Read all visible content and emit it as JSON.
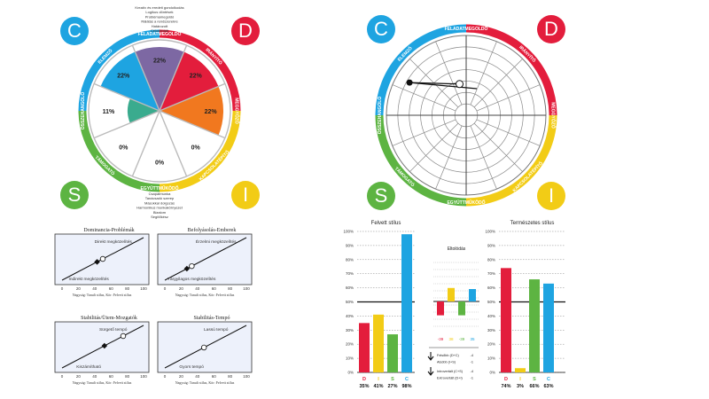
{
  "colors": {
    "D": "#e31d3c",
    "I": "#f2cc16",
    "S": "#5db442",
    "C": "#1ea4e1",
    "purple": "#7d68a3",
    "orange": "#f1781f",
    "teal": "#3aab8e",
    "plot_bg": "#edf1fb"
  },
  "wheel": {
    "letters": [
      {
        "key": "C",
        "text": "C"
      },
      {
        "key": "D",
        "text": "D"
      },
      {
        "key": "S",
        "text": "S"
      },
      {
        "key": "I",
        "text": "I"
      }
    ],
    "ring_labels": [
      "FELADATMEGOLDÓ",
      "IRÁNYÍTÓ",
      "MEGGYŐZŐ",
      "KAPCSOLATÉPÍTŐ",
      "EGYÜTTMŰKÖDŐ",
      "TÁMOGATÓ",
      "ÖSSZEHANGOLÓ",
      "ELEMZŐ"
    ],
    "percents": [
      "22%",
      "22%",
      "22%",
      "0%",
      "0%",
      "0%",
      "11%",
      "22%"
    ],
    "top_list": [
      "Kreatív és eredeti gondolkodás",
      "Logikus döntések",
      "Problémamegoldó",
      "Rálátás a rendszerekre",
      "Határozott",
      "Célorientált"
    ],
    "bottom_list": [
      "Csapatmunka",
      "Tanácsadó szerep",
      "Másokkal dolgozás",
      "Harmonikus munkakörnyezet",
      "Bizalom",
      "Segítőkész"
    ]
  },
  "quadrants": [
    {
      "title": "Dominancia-Problémák",
      "upper_label": "Direkt megközelítés",
      "lower_label": "Indirekt megközelítés",
      "caption": "Nagyság: Tanult stílus, Kör: Felvett stílus",
      "ticks": [
        "0",
        "20",
        "40",
        "60",
        "80",
        "100"
      ],
      "diamond": 43,
      "circle": 50
    },
    {
      "title": "Befolyásolás-Emberek",
      "upper_label": "Érzelmi megközelítés",
      "lower_label": "Tárgyilagos megközelítés",
      "caption": "Nagyság: Tanult stílus, Kör: Felvett stílus",
      "ticks": [
        "0",
        "20",
        "40",
        "60",
        "80",
        "100"
      ],
      "diamond": 27,
      "circle": 33
    },
    {
      "title": "Stabilitás/Ütem-Mozgatók",
      "upper_label": "Sürgető tempó",
      "lower_label": "Kiszámítható",
      "caption": "Nagyság: Tanult stílus, Kör: Felvett stílus",
      "ticks": [
        "0",
        "20",
        "40",
        "60",
        "80",
        "100"
      ],
      "diamond": 52,
      "circle": 75
    },
    {
      "title": "Stabilitás-Tempó",
      "upper_label": "Lassú tempó",
      "lower_label": "Gyors tempó",
      "caption": "Nagyság: Tanult stílus, Kör: Felvett stílus",
      "ticks": [
        "0",
        "20",
        "40",
        "60",
        "80",
        "100"
      ],
      "diamond": 48,
      "circle": 48
    }
  ],
  "chart_data": [
    {
      "type": "bar",
      "title": "Felvett stílus",
      "categories": [
        "D",
        "I",
        "S",
        "C"
      ],
      "values": [
        35,
        41,
        27,
        98
      ],
      "value_labels": [
        "35%",
        "41%",
        "27%",
        "98%"
      ],
      "ylim": [
        0,
        100
      ],
      "yticks": [
        "0%",
        "10%",
        "20%",
        "30%",
        "40%",
        "50%",
        "60%",
        "70%",
        "80%",
        "90%",
        "100%"
      ],
      "reference_line": 50
    },
    {
      "type": "bar",
      "title": "Természetes stílus",
      "categories": [
        "D",
        "I",
        "S",
        "C"
      ],
      "values": [
        74,
        3,
        66,
        63
      ],
      "value_labels": [
        "74%",
        "3%",
        "66%",
        "63%"
      ],
      "ylim": [
        0,
        100
      ],
      "yticks": [
        "0%",
        "10%",
        "20%",
        "30%",
        "40%",
        "50%",
        "60%",
        "70%",
        "80%",
        "90%",
        "100%"
      ],
      "reference_line": 50
    },
    {
      "type": "bar",
      "title": "Eltolódás",
      "categories": [
        "D",
        "I",
        "S",
        "C"
      ],
      "values": [
        -39,
        38,
        -39,
        35
      ],
      "value_labels": [
        "-39",
        "38",
        "-39",
        "35"
      ],
      "notes": [
        {
          "label": "Felsőbb (D+C)",
          "value": "-4"
        },
        {
          "label": "Alsóbb (I+S)",
          "value": "-1"
        },
        {
          "label": "Introvertált (C+S)",
          "value": "-4"
        },
        {
          "label": "Extrovertált (D+I)",
          "value": "-1"
        }
      ]
    }
  ]
}
